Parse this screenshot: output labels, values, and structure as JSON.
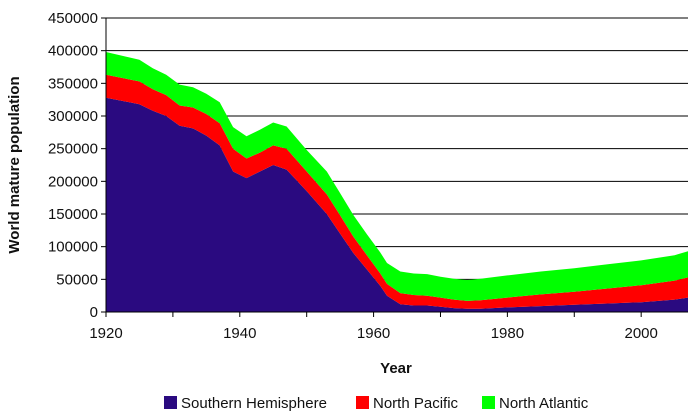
{
  "chart_data": {
    "type": "area",
    "stacked": true,
    "xlabel": "Year",
    "ylabel": "World mature population",
    "xlim": [
      1920,
      2007
    ],
    "ylim": [
      0,
      450000
    ],
    "xticks": [
      1920,
      1940,
      1960,
      1980,
      2000
    ],
    "yticks": [
      0,
      50000,
      100000,
      150000,
      200000,
      250000,
      300000,
      350000,
      400000,
      450000
    ],
    "grid": "horizontal",
    "legend_position": "bottom",
    "x": [
      1920,
      1925,
      1927,
      1929,
      1931,
      1933,
      1935,
      1937,
      1939,
      1941,
      1943,
      1945,
      1947,
      1950,
      1953,
      1955,
      1957,
      1959,
      1961,
      1962,
      1964,
      1966,
      1968,
      1970,
      1972,
      1974,
      1976,
      1980,
      1985,
      1990,
      1995,
      2000,
      2005,
      2007
    ],
    "series": [
      {
        "name": "Southern Hemisphere",
        "color": "#2a0a80",
        "values": [
          328000,
          318000,
          308000,
          300000,
          285000,
          281000,
          270000,
          255000,
          215000,
          205000,
          215000,
          225000,
          218000,
          185000,
          150000,
          120000,
          90000,
          65000,
          40000,
          25000,
          12000,
          10000,
          10000,
          8000,
          6000,
          5000,
          5000,
          7000,
          9000,
          11000,
          13000,
          15000,
          19000,
          22000
        ]
      },
      {
        "name": "North Pacific",
        "color": "#ff0000",
        "values": [
          35000,
          35000,
          33000,
          32000,
          31000,
          32000,
          33000,
          34000,
          35000,
          30000,
          29000,
          30000,
          32000,
          30000,
          30000,
          28000,
          25000,
          22000,
          19000,
          18000,
          17000,
          16000,
          15000,
          14000,
          13000,
          12000,
          13000,
          15000,
          18000,
          20000,
          23000,
          26000,
          29000,
          31000
        ]
      },
      {
        "name": "North Atlantic",
        "color": "#00ff00",
        "values": [
          35000,
          33000,
          32000,
          31000,
          32000,
          31000,
          31000,
          32000,
          33000,
          34000,
          35000,
          35000,
          34000,
          33000,
          35000,
          34000,
          33000,
          32000,
          32000,
          32000,
          33000,
          33000,
          33000,
          32000,
          32000,
          32000,
          33000,
          34000,
          35000,
          36000,
          37000,
          38000,
          39000,
          40000
        ]
      }
    ]
  }
}
